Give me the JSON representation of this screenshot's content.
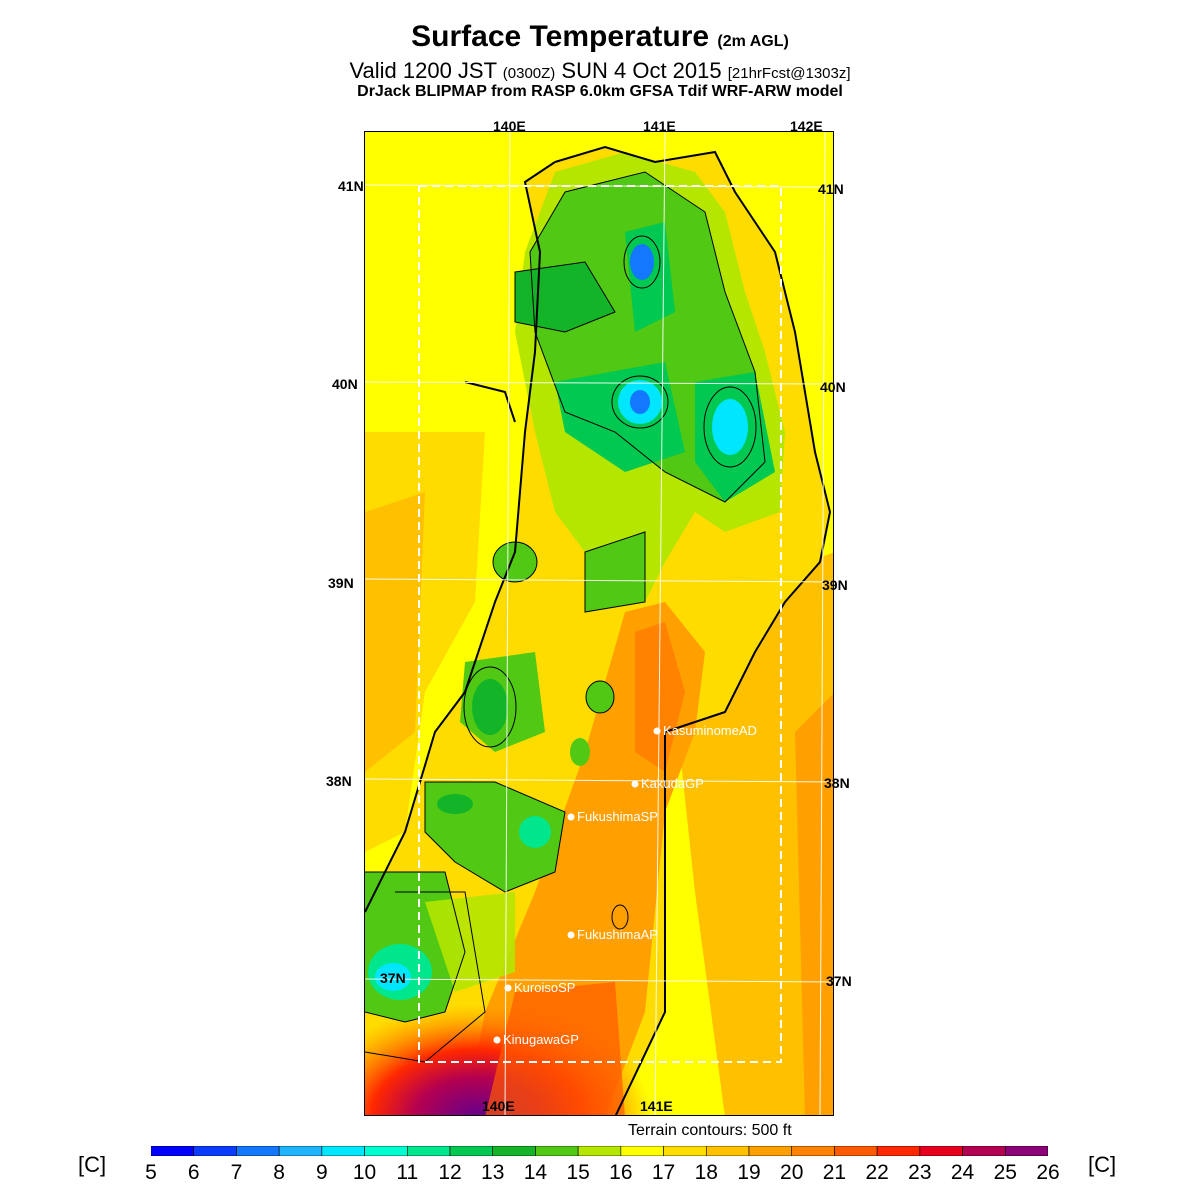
{
  "title": {
    "main": "Surface Temperature",
    "main_suffix": "(2m AGL)",
    "valid_prefix": "Valid 1200 JST",
    "valid_zulu": "(0300Z)",
    "valid_date": "SUN 4 Oct 2015",
    "forecast": "[21hrFcst@1303z]",
    "model": "DrJack BLIPMAP from RASP 6.0km GFSA Tdif WRF-ARW model"
  },
  "longitudes_top": [
    "140E",
    "141E",
    "142E"
  ],
  "longitudes_bottom": [
    "140E",
    "141E"
  ],
  "latitudes_left": [
    "41N",
    "40N",
    "39N",
    "38N",
    "37N"
  ],
  "latitudes_right": [
    "41N",
    "40N",
    "39N",
    "38N",
    "37N"
  ],
  "stations": [
    {
      "name": "KasuminomeAD"
    },
    {
      "name": "KakudaGP"
    },
    {
      "name": "FukushimaSP"
    },
    {
      "name": "FukushimaAP"
    },
    {
      "name": "KuroisoSP"
    },
    {
      "name": "KinugawaGP"
    }
  ],
  "terrain_note": "Terrain contours: 500 ft",
  "colorbar": {
    "unit_left": "[C]",
    "unit_right": "[C]",
    "ticks": [
      "5",
      "6",
      "7",
      "8",
      "9",
      "10",
      "11",
      "12",
      "13",
      "14",
      "15",
      "16",
      "17",
      "18",
      "19",
      "20",
      "21",
      "22",
      "23",
      "24",
      "25",
      "26"
    ],
    "colors": [
      "#0000ff",
      "#0a3cff",
      "#1478ff",
      "#1eb4ff",
      "#00e6ff",
      "#00ffd0",
      "#00e68c",
      "#00c850",
      "#14b428",
      "#50c814",
      "#b4e600",
      "#ffff00",
      "#ffdc00",
      "#ffc000",
      "#ffa000",
      "#ff8200",
      "#ff5a00",
      "#ff2800",
      "#e6001e",
      "#b40050",
      "#8c0078",
      "#64008c"
    ]
  }
}
